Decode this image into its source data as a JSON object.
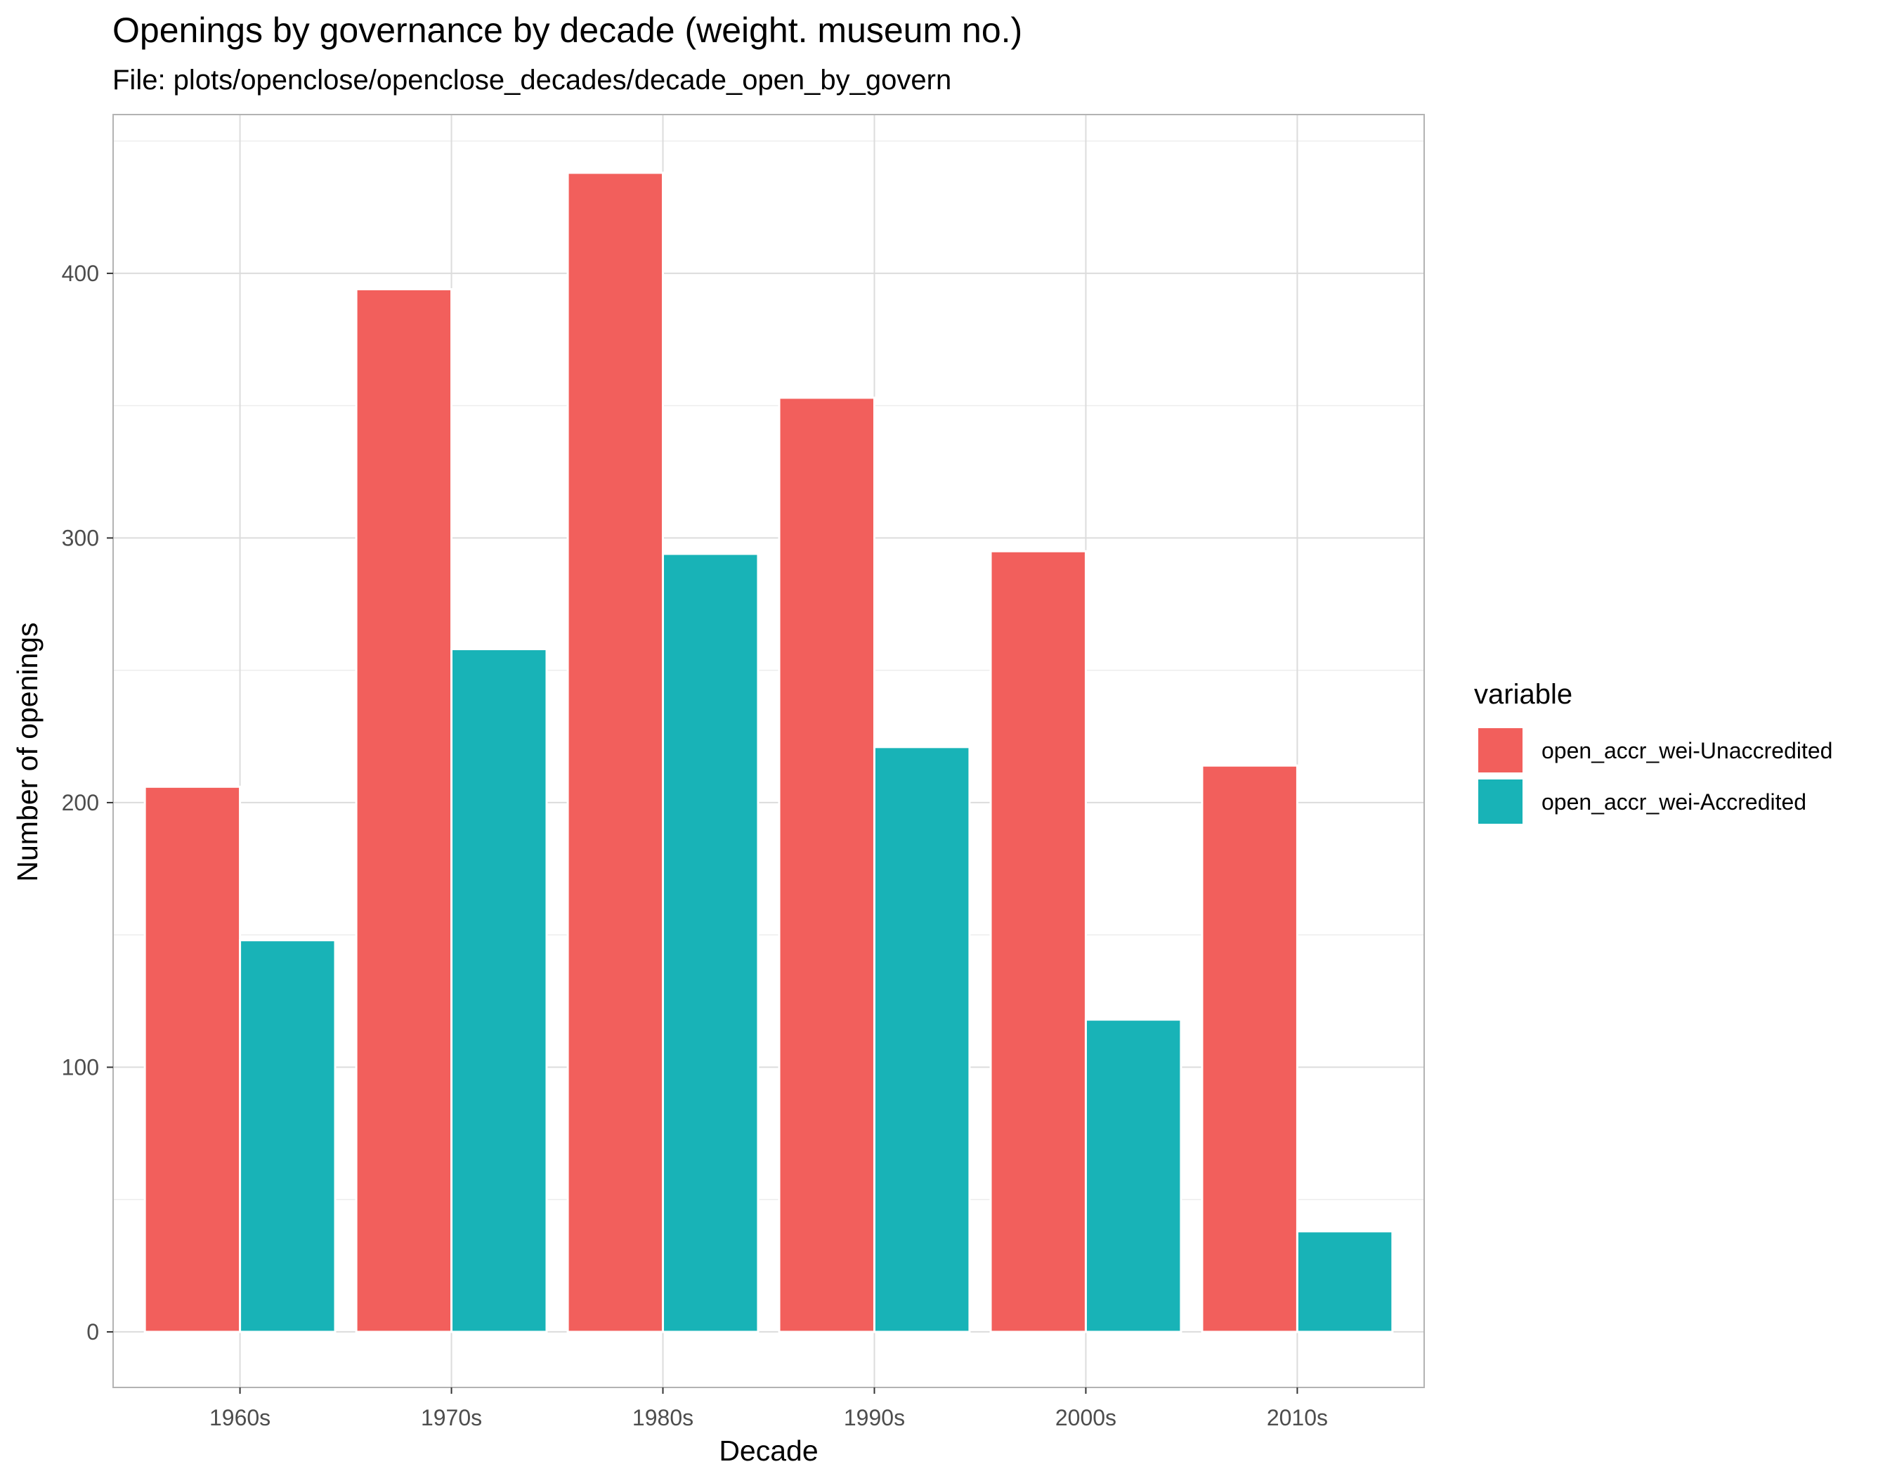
{
  "chart_data": {
    "type": "bar",
    "title": "Openings by governance by decade (weight. museum no.)",
    "subtitle": "File: plots/openclose/openclose_decades/decade_open_by_govern",
    "xlabel": "Decade",
    "ylabel": "Number of openings",
    "categories": [
      "1960s",
      "1970s",
      "1980s",
      "1990s",
      "2000s",
      "2010s"
    ],
    "series": [
      {
        "name": "open_accr_wei-Unaccredited",
        "color": "#F25F5C",
        "values": [
          206,
          394,
          438,
          353,
          295,
          214
        ]
      },
      {
        "name": "open_accr_wei-Accredited",
        "color": "#18B3B7",
        "values": [
          148,
          258,
          294,
          221,
          118,
          38
        ]
      }
    ],
    "yticks": [
      0,
      100,
      200,
      300,
      400
    ],
    "ylim": [
      -21,
      460
    ],
    "grid": true,
    "legend": {
      "title": "variable",
      "position": "right"
    }
  }
}
